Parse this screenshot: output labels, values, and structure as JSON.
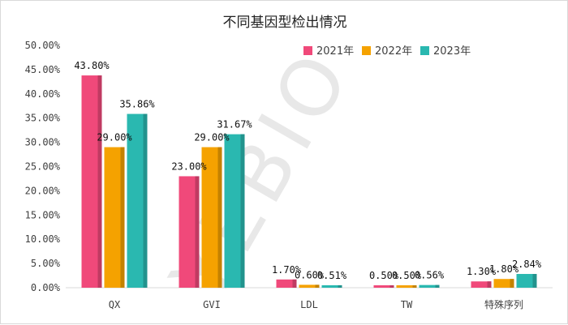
{
  "chart_data": {
    "type": "bar",
    "title": "不同基因型检出情况",
    "categories": [
      "QX",
      "GVI",
      "LDL",
      "TW",
      "特殊序列"
    ],
    "series": [
      {
        "name": "2021年",
        "color": "#f0497a",
        "values": [
          43.8,
          23.0,
          1.7,
          0.5,
          1.3
        ],
        "labels": [
          "43.80%",
          "23.00%",
          "1.70%",
          "0.50%",
          "1.30%"
        ]
      },
      {
        "name": "2022年",
        "color": "#f5a200",
        "values": [
          29.0,
          29.0,
          0.6,
          0.5,
          1.8
        ],
        "labels": [
          "29.00%",
          "29.00%",
          "0.60%",
          "0.50%",
          "1.80%"
        ]
      },
      {
        "name": "2023年",
        "color": "#2ab8b0",
        "values": [
          35.86,
          31.67,
          0.51,
          0.56,
          2.84
        ],
        "labels": [
          "35.86%",
          "31.67%",
          "0.51%",
          "0.56%",
          "2.84%"
        ]
      }
    ],
    "ylim": [
      0,
      50
    ],
    "yticks": [
      "0.00%",
      "5.00%",
      "10.00%",
      "15.00%",
      "20.00%",
      "25.00%",
      "30.00%",
      "35.00%",
      "40.00%",
      "45.00%",
      "50.00%"
    ],
    "xlabel": "",
    "ylabel": "",
    "grid": false,
    "legend_position": "top-right"
  },
  "watermark": "YEBIO"
}
